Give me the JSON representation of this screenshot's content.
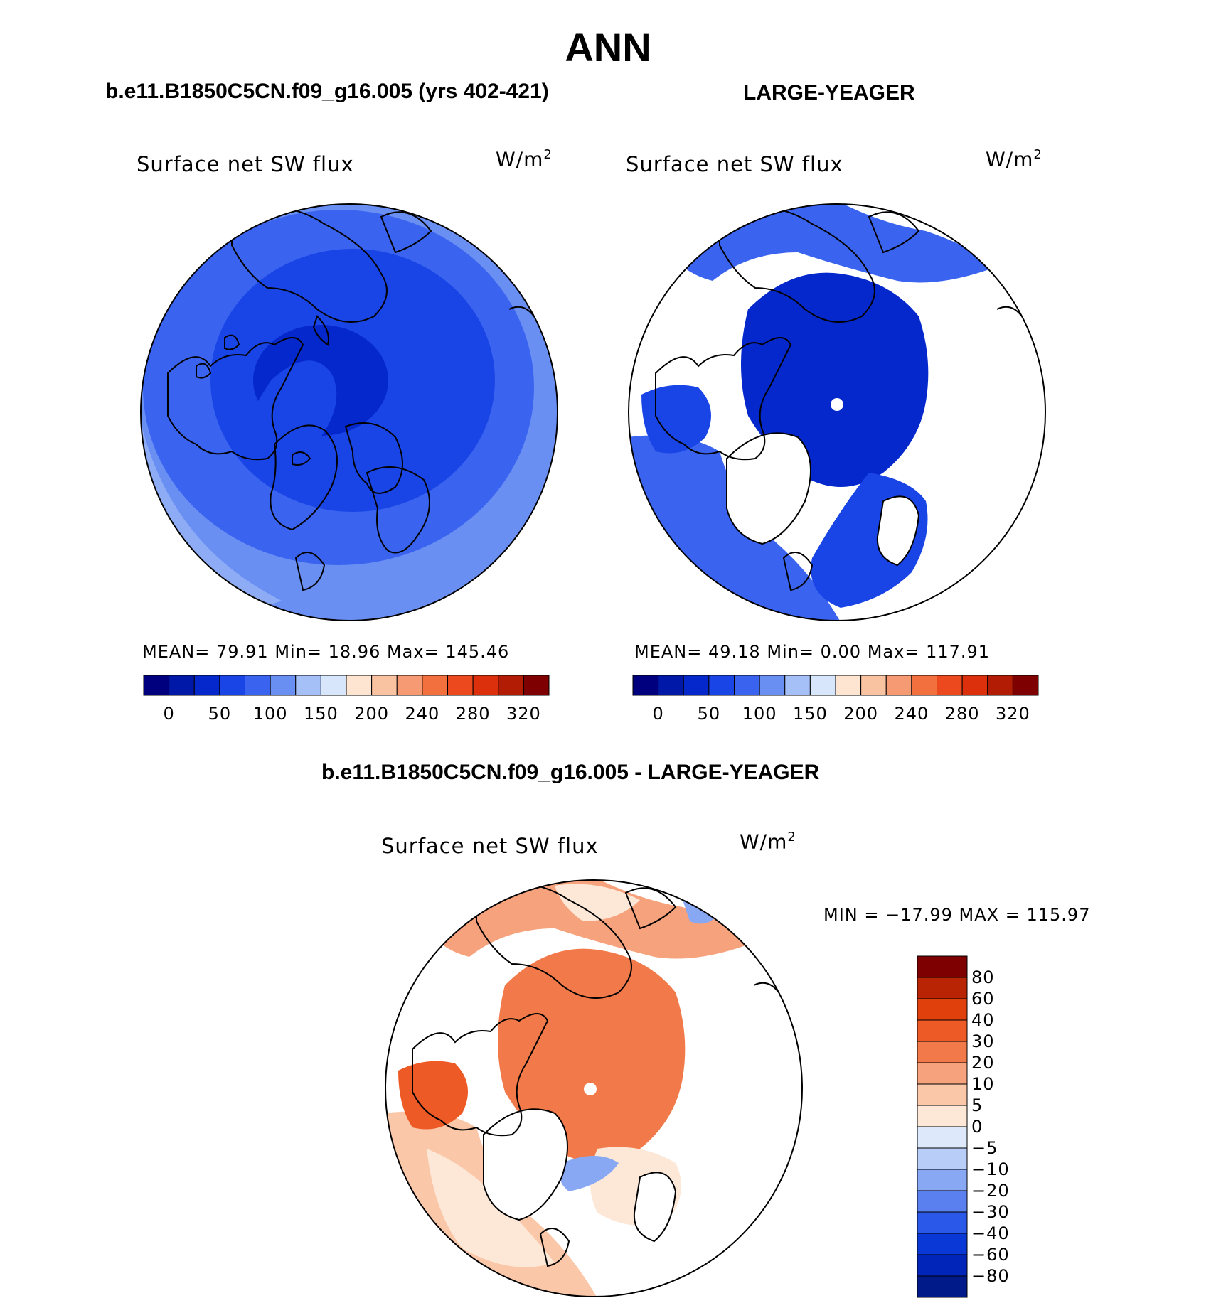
{
  "figure": {
    "title": "ANN",
    "colors": {
      "blues": [
        "#00007f",
        "#0018a8",
        "#0428cc",
        "#1a45e6",
        "#3a64ef",
        "#6a8ff3",
        "#a5bff7",
        "#d7e6fa"
      ],
      "reds": [
        "#fde5d2",
        "#f9c2a0",
        "#f69a74",
        "#f1703e",
        "#ec4a1e",
        "#dc300c",
        "#b21c04",
        "#7f0000"
      ],
      "diff_blues": [
        "#001a8a",
        "#0025b8",
        "#0a38d6",
        "#2a58e8",
        "#5a80ef",
        "#88a8f4",
        "#b8cef8",
        "#dde9fb"
      ],
      "diff_reds": [
        "#fde8d8",
        "#fac7a8",
        "#f6a27c",
        "#f27a4a",
        "#ee5a26",
        "#e0400c",
        "#b82404",
        "#7f0000"
      ]
    }
  },
  "panels": {
    "left": {
      "title": "b.e11.B1850C5CN.f09_g16.005 (yrs 402-421)",
      "variable": "Surface net SW flux",
      "unit": "W/m",
      "unit_sup": "2",
      "stats": "MEAN=   79.91   Min=   18.96   Max=  145.46"
    },
    "right": {
      "title": "LARGE-YEAGER",
      "variable": "Surface net SW flux",
      "unit": "W/m",
      "unit_sup": "2",
      "stats": "MEAN=   49.18   Min=    0.00   Max=  117.91"
    },
    "diff": {
      "title": "b.e11.B1850C5CN.f09_g16.005 - LARGE-YEAGER",
      "variable": "Surface net SW flux",
      "unit": "W/m",
      "unit_sup": "2",
      "stats": "MIN  =  −17.99  MAX  =  115.97"
    }
  },
  "colorbar_horizontal": {
    "ticks": [
      "0",
      "50",
      "100",
      "150",
      "200",
      "240",
      "280",
      "320"
    ]
  },
  "colorbar_vertical": {
    "ticks": [
      "80",
      "60",
      "40",
      "30",
      "20",
      "10",
      "5",
      "0",
      "−5",
      "−10",
      "−20",
      "−30",
      "−40",
      "−60",
      "−80"
    ]
  }
}
